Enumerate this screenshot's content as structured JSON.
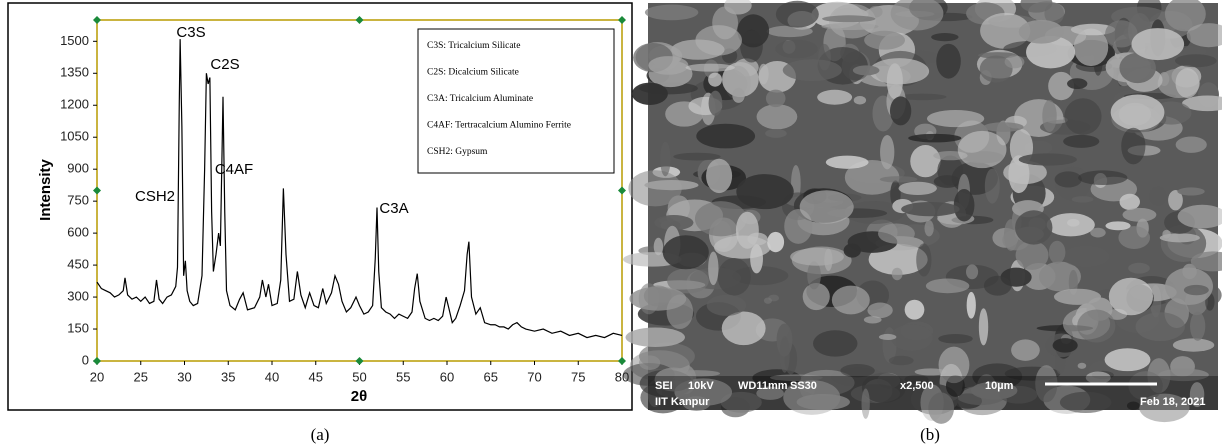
{
  "chart_data": {
    "type": "line",
    "x_label": "2θ",
    "y_label": "Intensity",
    "color": "#000000",
    "xlim": [
      20,
      80
    ],
    "ylim": [
      0,
      1600
    ],
    "xticks": [
      20,
      25,
      30,
      35,
      40,
      45,
      50,
      55,
      60,
      65,
      70,
      75,
      80
    ],
    "yticks": [
      0,
      150,
      300,
      450,
      600,
      750,
      900,
      1050,
      1200,
      1350,
      1500
    ],
    "annotations": [
      "C3S",
      "C2S",
      "C4AF",
      "CSH2",
      "C3A"
    ],
    "legend_box": [
      "C3S: Tricalcium Silicate",
      "C2S: Dicalcium Silicate",
      "C3A: Tricalcium Aluminate",
      "C4AF: Tertracalcium Alumino Ferrite",
      "CSH2: Gypsum"
    ],
    "x": [
      20,
      20.5,
      21,
      21.5,
      22,
      22.5,
      23,
      23.2,
      23.5,
      24,
      24.5,
      25,
      25.5,
      26,
      26.5,
      26.8,
      27.1,
      27.5,
      28,
      28.5,
      29,
      29.2,
      29.4,
      29.5,
      29.7,
      29.9,
      30.1,
      30.3,
      30.6,
      31,
      31.5,
      32,
      32.3,
      32.5,
      32.7,
      32.9,
      33.1,
      33.3,
      33.6,
      33.9,
      34.1,
      34.3,
      34.4,
      34.6,
      34.8,
      35.2,
      35.8,
      36.3,
      36.7,
      37.2,
      38,
      38.6,
      38.9,
      39.3,
      39.6,
      40,
      40.6,
      41,
      41.3,
      41.6,
      42,
      42.5,
      42.9,
      43.3,
      43.8,
      44.3,
      44.8,
      45.3,
      45.8,
      46.2,
      46.8,
      47.2,
      47.6,
      48,
      48.5,
      49,
      49.6,
      50,
      50.5,
      51,
      51.5,
      51.8,
      52,
      52.2,
      52.5,
      53,
      53.5,
      54,
      54.5,
      55,
      55.5,
      56,
      56.3,
      56.6,
      56.9,
      57.5,
      58,
      58.5,
      59,
      59.5,
      59.9,
      60.2,
      60.6,
      61,
      61.5,
      62,
      62.3,
      62.5,
      62.8,
      63.3,
      63.8,
      64.3,
      65,
      65.5,
      66,
      66.5,
      67,
      67.5,
      68,
      68.5,
      69,
      70,
      71,
      72,
      73,
      74,
      75,
      76,
      77,
      78,
      79,
      80
    ],
    "values": [
      370,
      340,
      330,
      320,
      300,
      310,
      330,
      390,
      310,
      290,
      300,
      280,
      300,
      270,
      280,
      380,
      290,
      270,
      300,
      310,
      350,
      440,
      1200,
      1510,
      1100,
      400,
      470,
      330,
      280,
      260,
      270,
      400,
      900,
      1350,
      1300,
      1330,
      700,
      420,
      500,
      600,
      540,
      1000,
      1240,
      700,
      330,
      260,
      240,
      290,
      320,
      240,
      250,
      300,
      380,
      300,
      360,
      260,
      270,
      380,
      810,
      500,
      280,
      290,
      420,
      310,
      250,
      320,
      260,
      250,
      340,
      270,
      320,
      400,
      360,
      280,
      230,
      250,
      300,
      260,
      220,
      230,
      260,
      480,
      720,
      420,
      250,
      230,
      220,
      200,
      220,
      210,
      200,
      230,
      340,
      410,
      280,
      200,
      190,
      200,
      190,
      210,
      300,
      250,
      180,
      200,
      260,
      330,
      500,
      560,
      300,
      220,
      250,
      180,
      170,
      170,
      160,
      160,
      150,
      170,
      180,
      160,
      150,
      140,
      150,
      130,
      140,
      120,
      130,
      110,
      120,
      110,
      130,
      120
    ]
  },
  "image": {
    "labels": [
      "SEI",
      "10kV",
      "WD11mm",
      "SS30",
      "x2,500",
      "10µm",
      "IIT Kanpur",
      "Feb 18, 2021"
    ]
  },
  "captions": [
    "(a)",
    "(b)"
  ]
}
